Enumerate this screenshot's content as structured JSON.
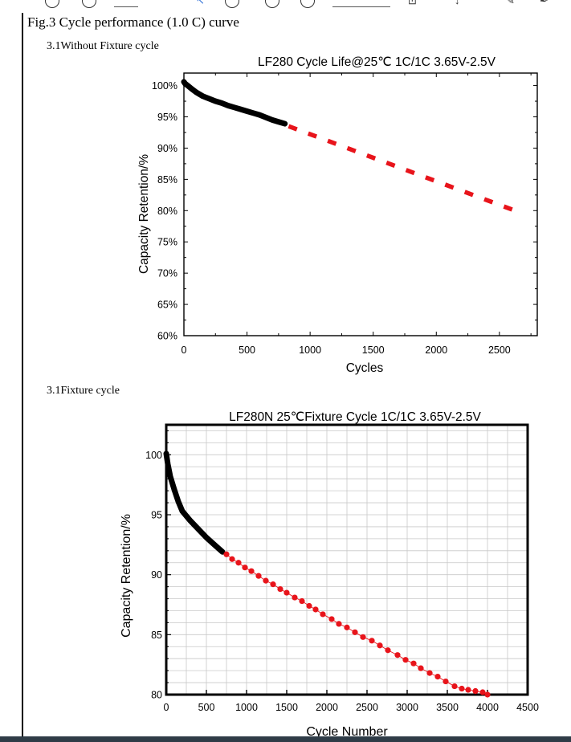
{
  "document": {
    "caption": "Fig.3 Cycle performance (1.0 C) curve",
    "section1_heading": "3.1Without Fixture cycle",
    "section2_heading": "3.1Fixture    cycle"
  },
  "chart_data": [
    {
      "type": "line",
      "title": "LF280  Cycle Life@25℃  1C/1C 3.65V-2.5V",
      "xlabel": "Cycles",
      "ylabel": "Capacity Retention/%",
      "xlim": [
        0,
        2800
      ],
      "ylim": [
        60,
        102
      ],
      "x_ticks": [
        0,
        500,
        1000,
        1500,
        2000,
        2500
      ],
      "y_ticks": [
        60,
        65,
        70,
        75,
        80,
        85,
        90,
        95,
        100
      ],
      "x_tick_labels": [
        "0",
        "500",
        "1000",
        "1500",
        "2000",
        "2500"
      ],
      "y_tick_labels": [
        "60%",
        "65%",
        "70%",
        "75%",
        "80%",
        "85%",
        "90%",
        "95%",
        "100%"
      ],
      "grid": false,
      "series": [
        {
          "style": "measured",
          "color": "#000000",
          "x": [
            0,
            10,
            30,
            60,
            100,
            150,
            200,
            250,
            300,
            350,
            400,
            450,
            500,
            550,
            600,
            650,
            700,
            750,
            800
          ],
          "y": [
            100.6,
            100.3,
            100.0,
            99.5,
            98.9,
            98.3,
            97.9,
            97.5,
            97.2,
            96.8,
            96.5,
            96.2,
            95.9,
            95.6,
            95.3,
            94.9,
            94.5,
            94.2,
            93.9
          ]
        },
        {
          "style": "projected",
          "color": "#e8141b",
          "x": [
            830,
            2650
          ],
          "y": [
            93.5,
            79.8
          ]
        }
      ]
    },
    {
      "type": "line",
      "title": "LF280N 25℃Fixture Cycle 1C/1C 3.65V-2.5V",
      "xlabel": "Cycle Number",
      "ylabel": "Capacity Retention/%",
      "xlim": [
        0,
        4500
      ],
      "ylim": [
        80,
        102.5
      ],
      "x_ticks": [
        0,
        500,
        1000,
        1500,
        2000,
        2500,
        3000,
        3500,
        4000,
        4500
      ],
      "y_ticks": [
        80,
        85,
        90,
        95,
        100
      ],
      "x_tick_labels": [
        "0",
        "500",
        "1000",
        "1500",
        "2000",
        "2500",
        "3000",
        "3500",
        "4000",
        "4500"
      ],
      "y_tick_labels": [
        "80",
        "85",
        "90",
        "95",
        "100"
      ],
      "grid": true,
      "series": [
        {
          "style": "measured",
          "color": "#000000",
          "x": [
            0,
            20,
            50,
            100,
            150,
            200,
            250,
            300,
            400,
            500,
            600,
            700
          ],
          "y": [
            100.1,
            99.2,
            98.2,
            97.1,
            96.1,
            95.3,
            94.9,
            94.5,
            93.8,
            93.1,
            92.5,
            91.9
          ]
        },
        {
          "style": "projected",
          "color": "#e8141b",
          "x": [
            750,
            820,
            900,
            980,
            1060,
            1150,
            1240,
            1330,
            1420,
            1500,
            1600,
            1690,
            1780,
            1860,
            1950,
            2060,
            2150,
            2250,
            2350,
            2450,
            2560,
            2660,
            2760,
            2880,
            2980,
            3080,
            3170,
            3280,
            3380,
            3480,
            3590,
            3680,
            3760,
            3850,
            3940,
            4000
          ],
          "y": [
            91.7,
            91.3,
            91.0,
            90.6,
            90.3,
            89.9,
            89.5,
            89.2,
            88.8,
            88.5,
            88.1,
            87.8,
            87.4,
            87.1,
            86.7,
            86.3,
            85.9,
            85.6,
            85.2,
            84.8,
            84.5,
            84.1,
            83.7,
            83.3,
            82.9,
            82.6,
            82.2,
            81.8,
            81.5,
            81.1,
            80.7,
            80.5,
            80.4,
            80.3,
            80.2,
            80.0
          ]
        }
      ]
    }
  ]
}
